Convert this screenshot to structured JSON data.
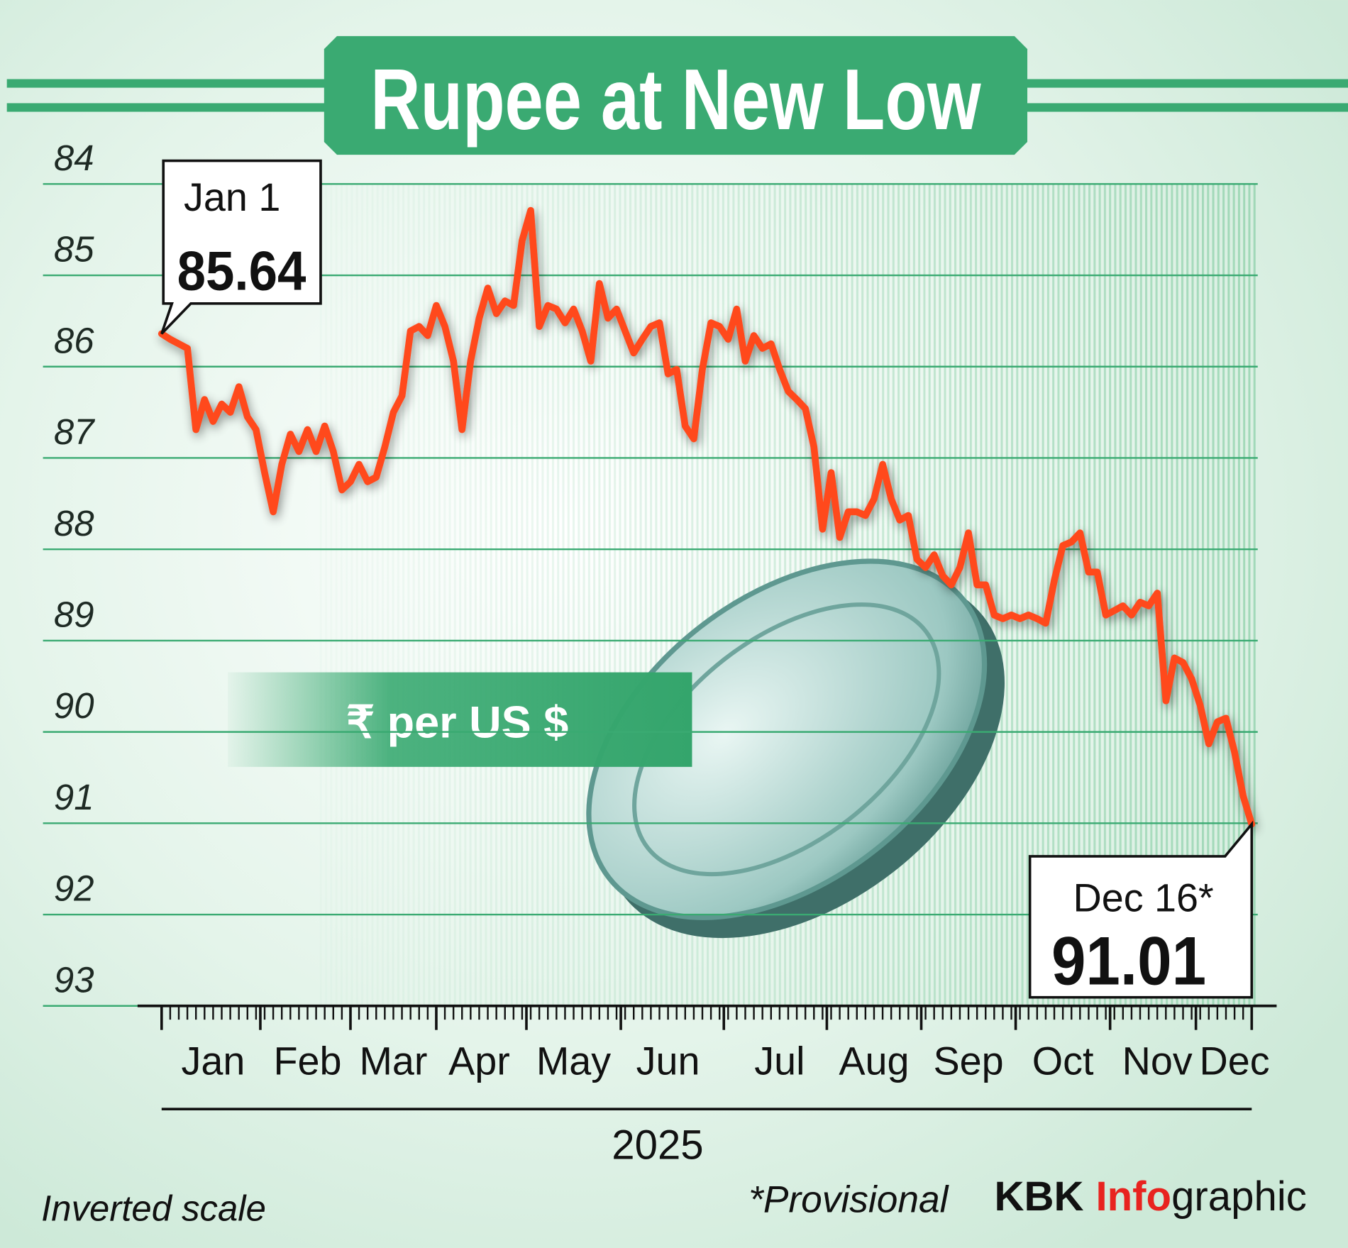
{
  "chart_data": {
    "type": "line",
    "title": "Rupee at New Low",
    "unit_label": "₹ per US $",
    "x_label": "2025",
    "scale_note": "Inverted scale",
    "footnote": "*Provisional",
    "source": [
      "KBK",
      "Info",
      "graphic"
    ],
    "color": "#ff4a1c",
    "y_inverted": true,
    "grid": true,
    "ylim": [
      84,
      93
    ],
    "yticks": [
      84,
      85,
      86,
      87,
      88,
      89,
      90,
      91,
      92,
      93
    ],
    "annotations": [
      {
        "label": "Jan 1",
        "value": 85.64
      },
      {
        "label": "Dec 16*",
        "value": 91.01
      }
    ],
    "categories": [
      null,
      null,
      null,
      null,
      null,
      null,
      "Jan",
      null,
      null,
      null,
      null,
      null,
      null,
      null,
      null,
      null,
      null,
      "Feb",
      null,
      null,
      null,
      null,
      null,
      null,
      null,
      null,
      null,
      "Mar",
      null,
      null,
      null,
      null,
      null,
      null,
      null,
      null,
      null,
      "Apr",
      null,
      null,
      null,
      null,
      null,
      null,
      null,
      null,
      null,
      null,
      "May",
      null,
      null,
      null,
      null,
      null,
      null,
      null,
      null,
      null,
      null,
      "Jun",
      null,
      null,
      null,
      null,
      null,
      null,
      null,
      null,
      null,
      null,
      null,
      null,
      "Jul",
      null,
      null,
      null,
      null,
      null,
      null,
      null,
      null,
      null,
      null,
      "Aug",
      null,
      null,
      null,
      null,
      null,
      null,
      null,
      null,
      null,
      null,
      "Sep",
      null,
      null,
      null,
      null,
      null,
      null,
      null,
      null,
      null,
      null,
      "Oct",
      null,
      null,
      null,
      null,
      null,
      null,
      null,
      null,
      null,
      null,
      "Nov",
      null,
      null,
      null,
      null,
      null,
      null,
      null,
      null,
      "Dec",
      null,
      null
    ],
    "values": [
      85.64,
      85.7,
      85.75,
      85.8,
      86.69,
      86.36,
      86.6,
      86.41,
      86.5,
      86.22,
      86.55,
      86.69,
      87.16,
      87.59,
      87.07,
      86.74,
      86.93,
      86.69,
      86.93,
      86.65,
      86.93,
      87.35,
      87.26,
      87.07,
      87.26,
      87.21,
      86.88,
      86.5,
      86.32,
      85.61,
      85.56,
      85.66,
      85.33,
      85.56,
      85.94,
      86.69,
      85.94,
      85.47,
      85.14,
      85.42,
      85.28,
      85.33,
      84.62,
      84.29,
      85.56,
      85.33,
      85.37,
      85.52,
      85.37,
      85.61,
      85.94,
      85.09,
      85.47,
      85.37,
      85.61,
      85.85,
      85.7,
      85.56,
      85.52,
      86.08,
      86.03,
      86.65,
      86.79,
      86.03,
      85.52,
      85.56,
      85.7,
      85.37,
      85.94,
      85.66,
      85.8,
      85.75,
      86.03,
      86.27,
      86.36,
      86.46,
      86.88,
      87.78,
      87.16,
      87.87,
      87.59,
      87.59,
      87.63,
      87.45,
      87.07,
      87.45,
      87.68,
      87.63,
      88.11,
      88.2,
      88.06,
      88.29,
      88.39,
      88.2,
      87.82,
      88.39,
      88.39,
      88.72,
      88.76,
      88.72,
      88.76,
      88.72,
      88.76,
      88.81,
      88.34,
      87.96,
      87.92,
      87.82,
      88.25,
      88.25,
      88.72,
      88.67,
      88.62,
      88.72,
      88.58,
      88.62,
      88.48,
      89.66,
      89.19,
      89.24,
      89.42,
      89.71,
      90.13,
      89.89,
      89.85,
      90.22,
      90.7,
      91.01
    ]
  }
}
